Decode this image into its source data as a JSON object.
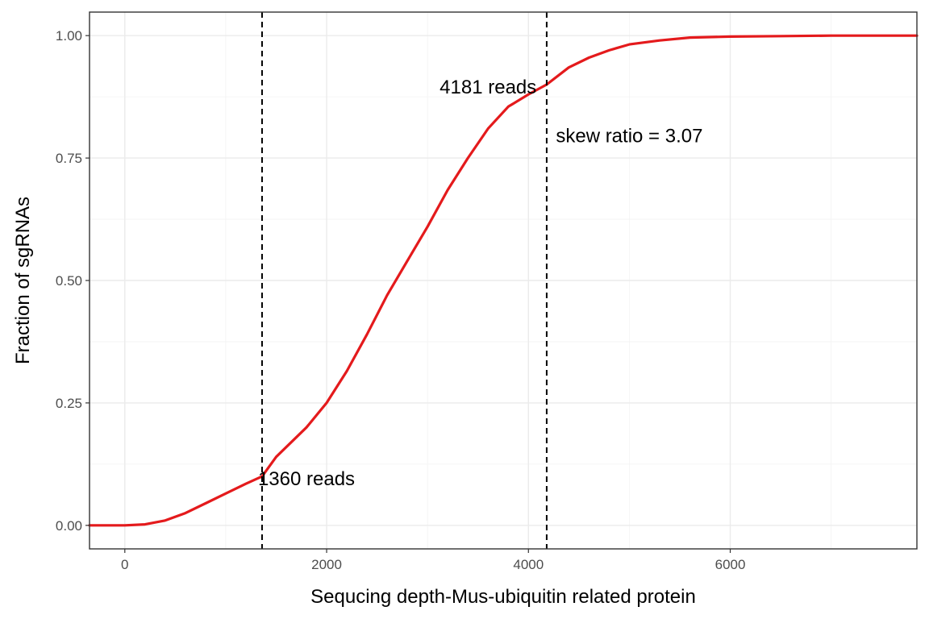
{
  "chart_data": {
    "type": "line",
    "xlabel": "Sequcing depth-Mus-ubiquitin related protein",
    "ylabel": "Fraction of sgRNAs",
    "xlim": [
      -350,
      7850
    ],
    "ylim": [
      -0.048,
      1.048
    ],
    "x_ticks": [
      0,
      2000,
      4000,
      6000
    ],
    "x_tick_labels": [
      "0",
      "2000",
      "4000",
      "6000"
    ],
    "y_ticks": [
      0,
      0.25,
      0.5,
      0.75,
      1.0
    ],
    "y_tick_labels": [
      "0.00",
      "0.25",
      "0.50",
      "0.75",
      "1.00"
    ],
    "grid": true,
    "theme": "bw",
    "series": [
      {
        "color": "#e41a1c",
        "x": [
          -350,
          0,
          200,
          400,
          600,
          800,
          1000,
          1200,
          1360,
          1500,
          1800,
          2000,
          2200,
          2400,
          2600,
          2800,
          3000,
          3200,
          3400,
          3600,
          3800,
          4000,
          4181,
          4400,
          4600,
          4800,
          5000,
          5300,
          5600,
          6000,
          6500,
          7000,
          7850
        ],
        "y": [
          0.0,
          0.0,
          0.002,
          0.01,
          0.025,
          0.045,
          0.065,
          0.085,
          0.1,
          0.14,
          0.2,
          0.25,
          0.315,
          0.39,
          0.47,
          0.54,
          0.61,
          0.685,
          0.75,
          0.81,
          0.855,
          0.88,
          0.9,
          0.935,
          0.955,
          0.97,
          0.982,
          0.99,
          0.996,
          0.998,
          0.999,
          1.0,
          1.0
        ]
      }
    ],
    "vlines": [
      1360,
      4181
    ],
    "annotations": [
      {
        "text": "1360 reads",
        "x": 1800,
        "y": 0.095
      },
      {
        "text": "4181 reads",
        "x": 3600,
        "y": 0.895
      },
      {
        "text": "skew ratio = 3.07",
        "x": 5000,
        "y": 0.795
      }
    ]
  }
}
